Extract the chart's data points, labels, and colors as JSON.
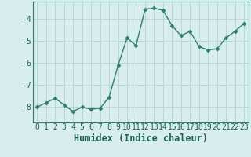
{
  "x": [
    0,
    1,
    2,
    3,
    4,
    5,
    6,
    7,
    8,
    9,
    10,
    11,
    12,
    13,
    14,
    15,
    16,
    17,
    18,
    19,
    20,
    21,
    22,
    23
  ],
  "y": [
    -8.0,
    -7.8,
    -7.6,
    -7.9,
    -8.2,
    -8.0,
    -8.1,
    -8.05,
    -7.55,
    -6.1,
    -4.85,
    -5.2,
    -3.55,
    -3.5,
    -3.6,
    -4.3,
    -4.75,
    -4.55,
    -5.25,
    -5.4,
    -5.35,
    -4.85,
    -4.55,
    -4.2
  ],
  "line_color": "#2e7d6e",
  "marker": "D",
  "markersize": 2.5,
  "linewidth": 1.0,
  "bg_color": "#d8eeec",
  "grid_color": "#b8d8d4",
  "xlabel": "Humidex (Indice chaleur)",
  "yticks": [
    -8,
    -7,
    -6,
    -5,
    -4
  ],
  "ylim": [
    -8.7,
    -3.2
  ],
  "xlim": [
    -0.5,
    23.5
  ],
  "xlabel_fontsize": 8.5,
  "tick_fontsize": 7,
  "text_color": "#1a5f54"
}
